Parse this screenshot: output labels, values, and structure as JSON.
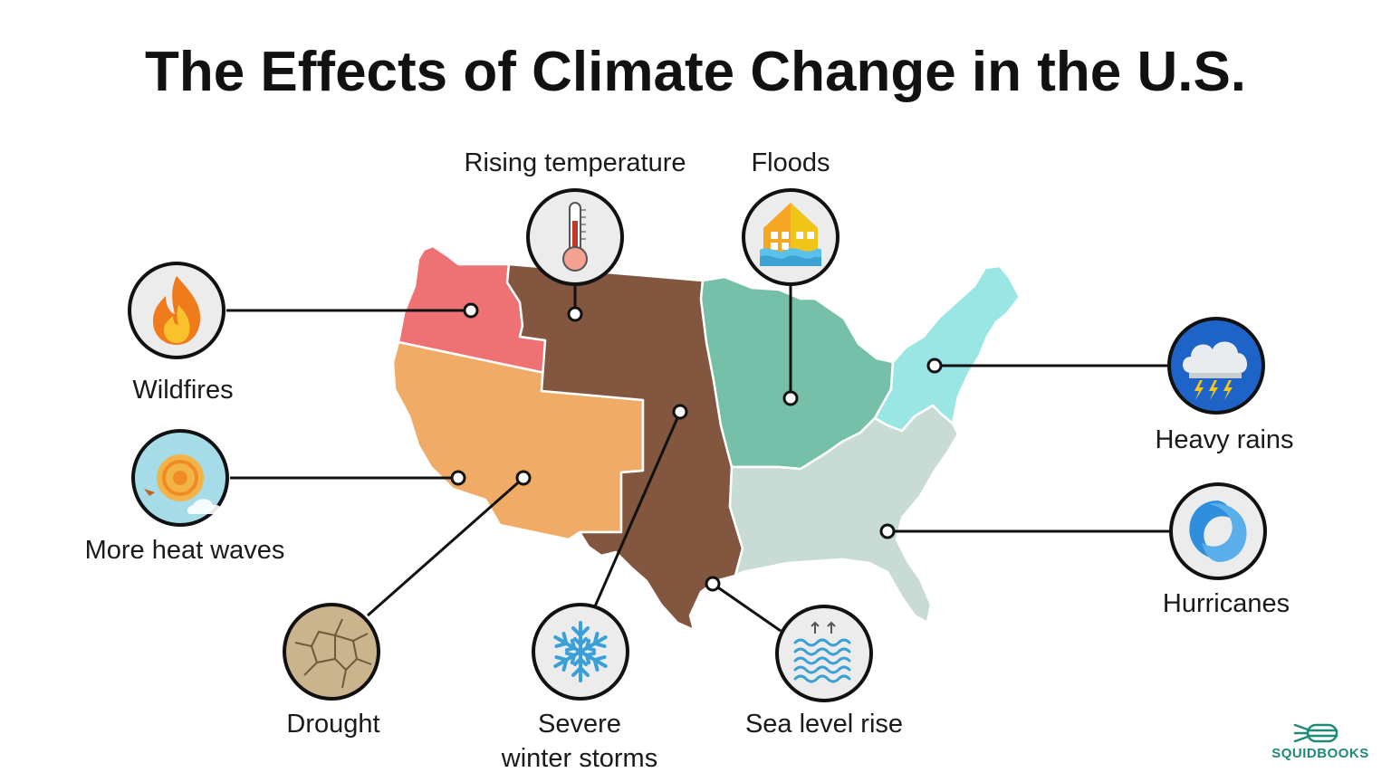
{
  "title": "The Effects of Climate Change in the U.S.",
  "colors": {
    "northwest": "#ee7274",
    "southwest": "#f0ab66",
    "great_plains": "#82563f",
    "midwest": "#76c0aa",
    "northeast": "#99e6e4",
    "southeast": "#c8dbd5",
    "connector": "#111111",
    "icon_bg": "#ececec",
    "brand": "#1f8a78"
  },
  "effects": [
    {
      "key": "wildfires",
      "label": "Wildfires",
      "icon": "fire-icon"
    },
    {
      "key": "rising_temperature",
      "label": "Rising temperature",
      "icon": "thermometer-icon"
    },
    {
      "key": "floods",
      "label": "Floods",
      "icon": "flooded-house-icon"
    },
    {
      "key": "heavy_rains",
      "label": "Heavy rains",
      "icon": "storm-cloud-icon"
    },
    {
      "key": "more_heat_waves",
      "label": "More heat waves",
      "icon": "sun-icon"
    },
    {
      "key": "hurricanes",
      "label": "Hurricanes",
      "icon": "hurricane-icon"
    },
    {
      "key": "drought",
      "label": "Drought",
      "icon": "cracked-earth-icon"
    },
    {
      "key": "severe_winter_storms",
      "label": "Severe\nwinter storms",
      "icon": "snowflake-icon"
    },
    {
      "key": "sea_level_rise",
      "label": "Sea level rise",
      "icon": "waves-icon"
    }
  ],
  "brand": {
    "name": "SQUIDBOOKS",
    "icon": "squid-logo-icon"
  }
}
